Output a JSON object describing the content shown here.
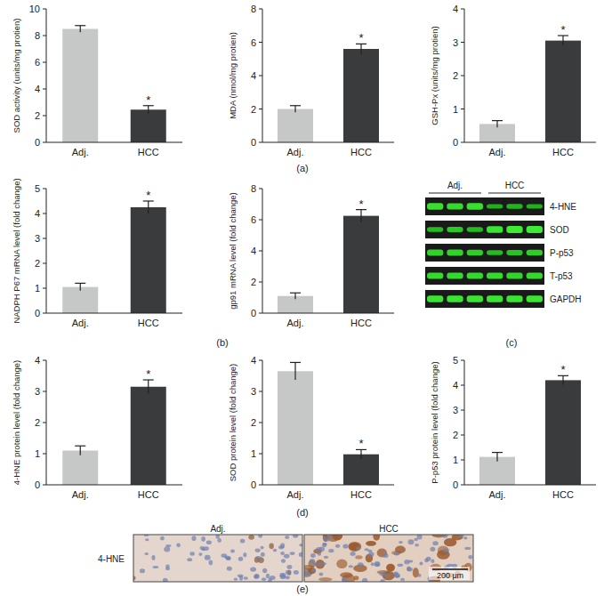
{
  "chart_data": [
    {
      "type": "bar",
      "y_label": "SOD activity (units/mg protien)",
      "categories": [
        "Adj.",
        "HCC"
      ],
      "values": [
        8.5,
        2.45
      ],
      "errors": [
        0.25,
        0.3
      ],
      "colors": [
        "#c6c8c8",
        "#3a3b3c"
      ],
      "ylim": [
        0,
        10
      ],
      "yticks": [
        0,
        2,
        4,
        6,
        8,
        10
      ],
      "annotations": [
        {
          "text": "*",
          "category": "HCC"
        }
      ]
    },
    {
      "type": "bar",
      "y_label": "MDA (nmol/mg protien)",
      "categories": [
        "Adj.",
        "HCC"
      ],
      "values": [
        2.0,
        5.6
      ],
      "errors": [
        0.2,
        0.3
      ],
      "colors": [
        "#c6c8c8",
        "#3a3b3c"
      ],
      "ylim": [
        0,
        8
      ],
      "yticks": [
        0,
        2,
        4,
        6,
        8
      ],
      "annotations": [
        {
          "text": "*",
          "category": "HCC"
        }
      ]
    },
    {
      "type": "bar",
      "y_label": "GSH-Px (units/mg protien)",
      "categories": [
        "Adj.",
        "HCC"
      ],
      "values": [
        0.55,
        3.05
      ],
      "errors": [
        0.1,
        0.15
      ],
      "colors": [
        "#c6c8c8",
        "#3a3b3c"
      ],
      "ylim": [
        0,
        4
      ],
      "yticks": [
        0,
        1,
        2,
        3,
        4
      ],
      "annotations": [
        {
          "text": "*",
          "category": "HCC"
        }
      ]
    },
    {
      "type": "bar",
      "y_label": "NADPH P67 mRNA level (fold change)",
      "categories": [
        "Adj.",
        "HCC"
      ],
      "values": [
        1.05,
        4.25
      ],
      "errors": [
        0.15,
        0.25
      ],
      "colors": [
        "#c6c8c8",
        "#3a3b3c"
      ],
      "ylim": [
        0,
        5
      ],
      "yticks": [
        0,
        1,
        2,
        3,
        4,
        5
      ],
      "annotations": [
        {
          "text": "*",
          "category": "HCC"
        }
      ]
    },
    {
      "type": "bar",
      "y_label": "gp91 mRNA level (fold change)",
      "categories": [
        "Adj.",
        "HCC"
      ],
      "values": [
        1.1,
        6.25
      ],
      "errors": [
        0.2,
        0.4
      ],
      "colors": [
        "#c6c8c8",
        "#3a3b3c"
      ],
      "ylim": [
        0,
        8
      ],
      "yticks": [
        0,
        2,
        4,
        6,
        8
      ],
      "annotations": [
        {
          "text": "*",
          "category": "HCC"
        }
      ]
    },
    {
      "type": "bar",
      "y_label": "4-HNE protein level (fold change)",
      "categories": [
        "Adj.",
        "HCC"
      ],
      "values": [
        1.1,
        3.15
      ],
      "errors": [
        0.15,
        0.22
      ],
      "colors": [
        "#c6c8c8",
        "#3a3b3c"
      ],
      "ylim": [
        0,
        4
      ],
      "yticks": [
        0,
        1,
        2,
        3,
        4
      ],
      "annotations": [
        {
          "text": "*",
          "category": "HCC"
        }
      ]
    },
    {
      "type": "bar",
      "y_label": "SOD protein level (fold change)",
      "categories": [
        "Adj.",
        "HCC"
      ],
      "values": [
        3.65,
        0.98
      ],
      "errors": [
        0.28,
        0.15
      ],
      "colors": [
        "#c6c8c8",
        "#3a3b3c"
      ],
      "ylim": [
        0,
        4
      ],
      "yticks": [
        0,
        1,
        2,
        3,
        4
      ],
      "annotations": [
        {
          "text": "*",
          "category": "HCC"
        }
      ]
    },
    {
      "type": "bar",
      "y_label": "P-p53 protein level (fold change)",
      "categories": [
        "Adj.",
        "HCC"
      ],
      "values": [
        1.12,
        4.2
      ],
      "errors": [
        0.18,
        0.18
      ],
      "colors": [
        "#c6c8c8",
        "#3a3b3c"
      ],
      "ylim": [
        0,
        5
      ],
      "yticks": [
        0,
        1,
        2,
        3,
        4,
        5
      ],
      "annotations": [
        {
          "text": "*",
          "category": "HCC"
        }
      ]
    }
  ],
  "panel_labels": [
    "(a)",
    "(b)",
    "(c)",
    "(d)",
    "(e)"
  ],
  "blot": {
    "groups": [
      "Adj.",
      "HCC"
    ],
    "rows": [
      "4-HNE",
      "SOD",
      "P-p53",
      "T-p53",
      "GAPDH"
    ]
  },
  "ihc": {
    "groups": [
      "Adj.",
      "HCC"
    ],
    "stain": "4-HNE",
    "scale_bar": "200 μm"
  }
}
